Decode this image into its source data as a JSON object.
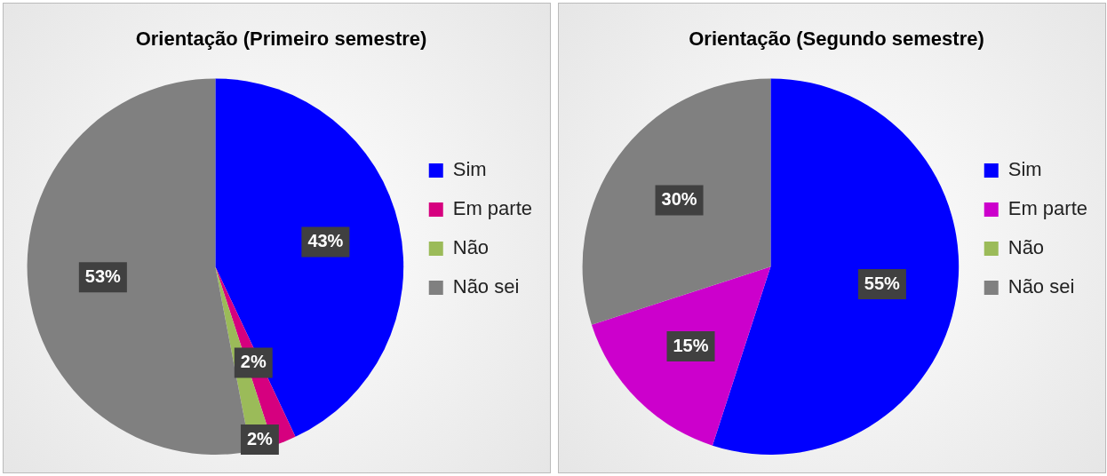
{
  "chart_data": [
    {
      "type": "pie",
      "title": "Orientação (Primeiro semestre)",
      "categories": [
        "Sim",
        "Em parte",
        "Não",
        "Não sei"
      ],
      "values": [
        43,
        2,
        2,
        53
      ],
      "colors": [
        "#0000ff",
        "#d6007f",
        "#9bbb59",
        "#808080"
      ],
      "value_labels": [
        "43%",
        "2%",
        "2%",
        "53%"
      ],
      "legend": "right"
    },
    {
      "type": "pie",
      "title": "Orientação (Segundo semestre)",
      "categories": [
        "Sim",
        "Em parte",
        "Não",
        "Não sei"
      ],
      "values": [
        55,
        15,
        0,
        30
      ],
      "colors": [
        "#0000ff",
        "#cc00cc",
        "#9bbb59",
        "#808080"
      ],
      "value_labels": [
        "55%",
        "15%",
        null,
        "30%"
      ],
      "legend": "right"
    }
  ]
}
